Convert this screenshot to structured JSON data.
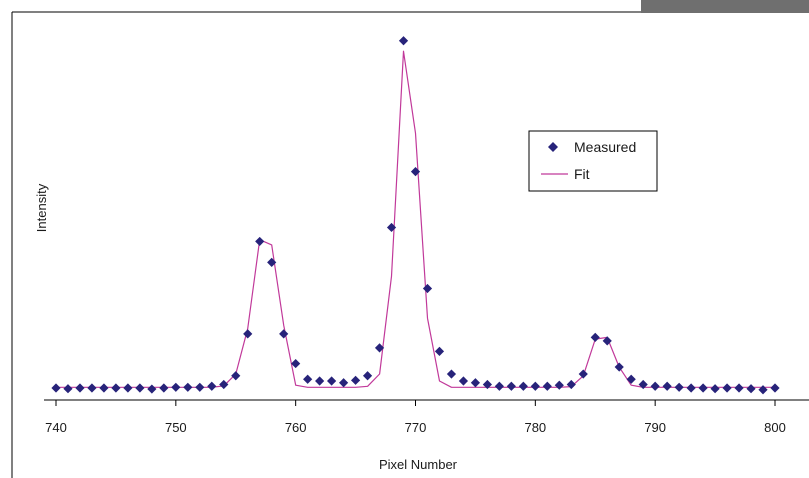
{
  "chart_data": {
    "type": "scatter",
    "title": "",
    "xlabel": "Pixel Number",
    "ylabel": "Intensity",
    "xlim": [
      740,
      800
    ],
    "ylim": [
      0,
      1.0
    ],
    "x_ticks": [
      "740",
      "750",
      "760",
      "770",
      "780",
      "790",
      "800"
    ],
    "y_ticks": [],
    "grid": false,
    "legend_position": "upper-right",
    "colors": {
      "measured": "#27237a",
      "fit": "#c1399a",
      "axis": "#000000",
      "corner_tab": "#6f6f6f"
    },
    "series": [
      {
        "name": "Measured",
        "kind": "points",
        "marker": "diamond",
        "x": [
          740,
          741,
          742,
          743,
          744,
          745,
          746,
          747,
          748,
          749,
          750,
          751,
          752,
          753,
          754,
          755,
          756,
          757,
          758,
          759,
          760,
          761,
          762,
          763,
          764,
          765,
          766,
          767,
          768,
          769,
          770,
          771,
          772,
          773,
          774,
          775,
          776,
          777,
          778,
          779,
          780,
          781,
          782,
          783,
          784,
          785,
          786,
          787,
          788,
          789,
          790,
          791,
          792,
          793,
          794,
          795,
          796,
          797,
          798,
          799,
          800
        ],
        "y": [
          0.0,
          -0.002,
          0.0,
          0.0,
          0.0,
          0.0,
          0.0,
          0.0,
          -0.003,
          0.0,
          0.002,
          0.002,
          0.002,
          0.005,
          0.01,
          0.035,
          0.155,
          0.42,
          0.36,
          0.155,
          0.07,
          0.025,
          0.02,
          0.02,
          0.015,
          0.022,
          0.035,
          0.115,
          0.46,
          0.995,
          0.62,
          0.285,
          0.105,
          0.04,
          0.02,
          0.015,
          0.01,
          0.005,
          0.005,
          0.005,
          0.005,
          0.005,
          0.008,
          0.01,
          0.04,
          0.145,
          0.135,
          0.06,
          0.025,
          0.01,
          0.005,
          0.005,
          0.002,
          0.0,
          0.0,
          -0.002,
          0.0,
          0.0,
          -0.002,
          -0.005,
          0.0
        ]
      },
      {
        "name": "Fit",
        "kind": "line",
        "x": [
          740,
          741,
          742,
          743,
          744,
          745,
          746,
          747,
          748,
          749,
          750,
          751,
          752,
          753,
          754,
          755,
          756,
          757,
          758,
          759,
          760,
          761,
          762,
          763,
          764,
          765,
          766,
          767,
          768,
          769,
          770,
          771,
          772,
          773,
          774,
          775,
          776,
          777,
          778,
          779,
          780,
          781,
          782,
          783,
          784,
          785,
          786,
          787,
          788,
          789,
          790,
          791,
          792,
          793,
          794,
          795,
          796,
          797,
          798,
          799,
          800
        ],
        "y": [
          0.002,
          0.002,
          0.002,
          0.002,
          0.002,
          0.002,
          0.002,
          0.002,
          0.002,
          0.002,
          0.002,
          0.002,
          0.002,
          0.002,
          0.006,
          0.04,
          0.17,
          0.425,
          0.41,
          0.18,
          0.008,
          0.002,
          0.002,
          0.002,
          0.002,
          0.002,
          0.005,
          0.04,
          0.32,
          0.965,
          0.73,
          0.2,
          0.02,
          0.002,
          0.002,
          0.002,
          0.002,
          0.002,
          0.002,
          0.002,
          0.002,
          0.002,
          0.002,
          0.004,
          0.035,
          0.14,
          0.145,
          0.06,
          0.008,
          0.002,
          0.002,
          0.002,
          0.002,
          0.002,
          0.002,
          0.002,
          0.002,
          0.002,
          0.002,
          0.002,
          0.002
        ]
      }
    ]
  }
}
